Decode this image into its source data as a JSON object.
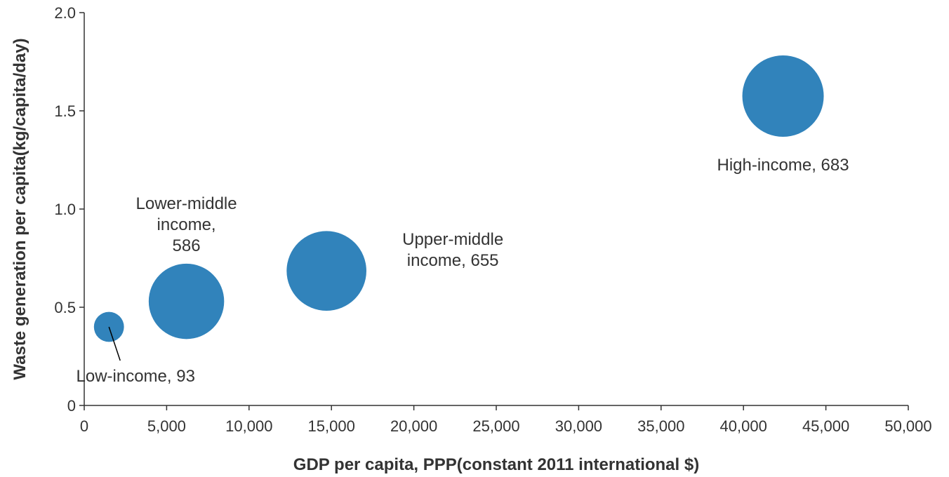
{
  "chart_data": {
    "type": "scatter",
    "variant": "bubble",
    "title": "",
    "xlabel": "GDP per capita, PPP(constant 2011 international $)",
    "ylabel": "Waste generation per capita(kg/capita/day)",
    "xlim": [
      0,
      50000
    ],
    "ylim": [
      0,
      2.0
    ],
    "x_ticks": [
      0,
      5000,
      10000,
      15000,
      20000,
      25000,
      30000,
      35000,
      40000,
      45000,
      50000
    ],
    "x_tick_labels": [
      "0",
      "5,000",
      "10,000",
      "15,000",
      "20,000",
      "25,000",
      "30,000",
      "35,000",
      "40,000",
      "45,000",
      "50,000"
    ],
    "y_ticks": [
      0,
      0.5,
      1.0,
      1.5,
      2.0
    ],
    "y_tick_labels": [
      "0",
      "0.5",
      "1.0",
      "1.5",
      "2.0"
    ],
    "grid": false,
    "bubble_color": "#3183bb",
    "points": [
      {
        "name": "Low-income",
        "x": 1500,
        "y": 0.4,
        "size": 93,
        "label_lines": [
          "Low-income, 93"
        ]
      },
      {
        "name": "Lower-middle income",
        "x": 6200,
        "y": 0.53,
        "size": 586,
        "label_lines": [
          "Lower-middle",
          "income,",
          "586"
        ]
      },
      {
        "name": "Upper-middle income",
        "x": 14700,
        "y": 0.685,
        "size": 655,
        "label_lines": [
          "Upper-middle",
          "income, 655"
        ]
      },
      {
        "name": "High-income",
        "x": 42400,
        "y": 1.575,
        "size": 683,
        "label_lines": [
          "High-income, 683"
        ]
      }
    ]
  }
}
